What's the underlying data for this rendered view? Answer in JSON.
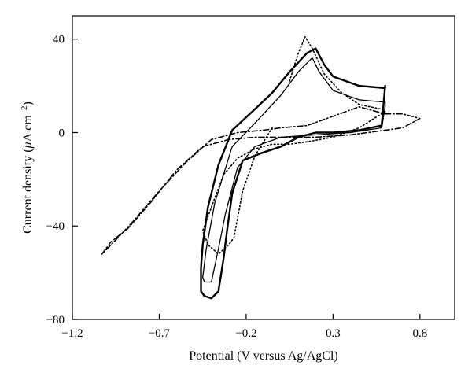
{
  "chart_data": {
    "type": "line",
    "title": "",
    "xlabel": "Potential (V versus Ag/AgCl)",
    "ylabel_parts": {
      "pre": "Current density (",
      "mu": "μ",
      "mid": "A cm",
      "sup": "−2",
      "post": ")"
    },
    "xlim": [
      -1.2,
      1.0
    ],
    "ylim": [
      -80,
      50
    ],
    "xticks": [
      {
        "v": -1.2,
        "label": "−1.2"
      },
      {
        "v": -0.7,
        "label": "−0.7"
      },
      {
        "v": -0.2,
        "label": "−0.2"
      },
      {
        "v": 0.3,
        "label": "0.3"
      },
      {
        "v": 0.8,
        "label": "0.8"
      }
    ],
    "yticks": [
      {
        "v": 40,
        "label": "40"
      },
      {
        "v": 0,
        "label": "0"
      },
      {
        "v": -40,
        "label": "−40"
      },
      {
        "v": -80,
        "label": "−80"
      }
    ],
    "grid": false,
    "legend": "none",
    "series": [
      {
        "style": "thick-solid",
        "x": [
          0.6,
          0.6,
          0.45,
          0.3,
          0.25,
          0.2,
          0.15,
          0.05,
          -0.05,
          -0.15,
          -0.28,
          -0.36,
          -0.42,
          -0.45,
          -0.46,
          -0.46,
          -0.44,
          -0.4,
          -0.36,
          -0.33,
          -0.31,
          -0.28,
          -0.22,
          -0.12,
          0.0,
          0.05,
          0.1,
          0.15,
          0.2,
          0.3,
          0.45,
          0.58,
          0.6
        ],
        "y": [
          20,
          19,
          20,
          24,
          29,
          36,
          34,
          26,
          17,
          10,
          1,
          -14,
          -32,
          -48,
          -58,
          -68,
          -70,
          -71,
          -68,
          -54,
          -42,
          -26,
          -12,
          -9,
          -6,
          -4,
          -2,
          -1,
          0,
          0,
          1,
          3,
          20
        ]
      },
      {
        "style": "thin-solid",
        "x": [
          0.6,
          0.6,
          0.45,
          0.3,
          0.22,
          0.18,
          0.1,
          0.0,
          -0.15,
          -0.28,
          -0.38,
          -0.43,
          -0.45,
          -0.44,
          -0.4,
          -0.36,
          -0.32,
          -0.25,
          -0.15,
          0.0,
          0.2,
          0.4,
          0.58,
          0.6
        ],
        "y": [
          11,
          13,
          14,
          18,
          26,
          32,
          26,
          16,
          4,
          -6,
          -30,
          -50,
          -62,
          -64,
          -64,
          -50,
          -35,
          -15,
          -6,
          -2,
          -1,
          0,
          2,
          11
        ]
      },
      {
        "style": "dotted",
        "x": [
          0.05,
          0.1,
          0.14,
          0.18,
          0.25,
          0.35,
          0.45,
          0.58,
          0.6,
          0.45,
          0.3,
          0.15,
          0.05,
          -0.05,
          -0.15,
          -0.25,
          -0.33,
          -0.38,
          -0.42,
          -0.45,
          -0.42,
          -0.36,
          -0.3,
          -0.27,
          -0.22,
          -0.15,
          -0.05
        ],
        "y": [
          22,
          34,
          41,
          36,
          25,
          17,
          12,
          10,
          9,
          2,
          -2,
          -4,
          -5,
          -5,
          -7,
          -11,
          -18,
          -28,
          -36,
          -42,
          -48,
          -52,
          -48,
          -45,
          -25,
          -10,
          2
        ]
      },
      {
        "style": "dash-dot",
        "x": [
          0.6,
          0.7,
          0.8,
          0.7,
          0.6,
          0.4,
          0.2,
          0.0,
          -0.15,
          -0.3,
          -0.45,
          -0.6,
          -0.75,
          -0.88,
          -0.98,
          -1.03,
          -0.95,
          -0.85,
          -0.7,
          -0.55,
          -0.4,
          -0.25,
          -0.1,
          0.0,
          0.15,
          0.3,
          0.45,
          0.6
        ],
        "y": [
          8,
          8,
          6,
          2,
          1,
          -1,
          -2,
          -2,
          -2,
          -3,
          -6,
          -16,
          -30,
          -41,
          -47,
          -52,
          -46,
          -38,
          -25,
          -13,
          -3,
          0,
          1,
          2,
          3,
          7,
          11,
          8
        ]
      }
    ]
  }
}
